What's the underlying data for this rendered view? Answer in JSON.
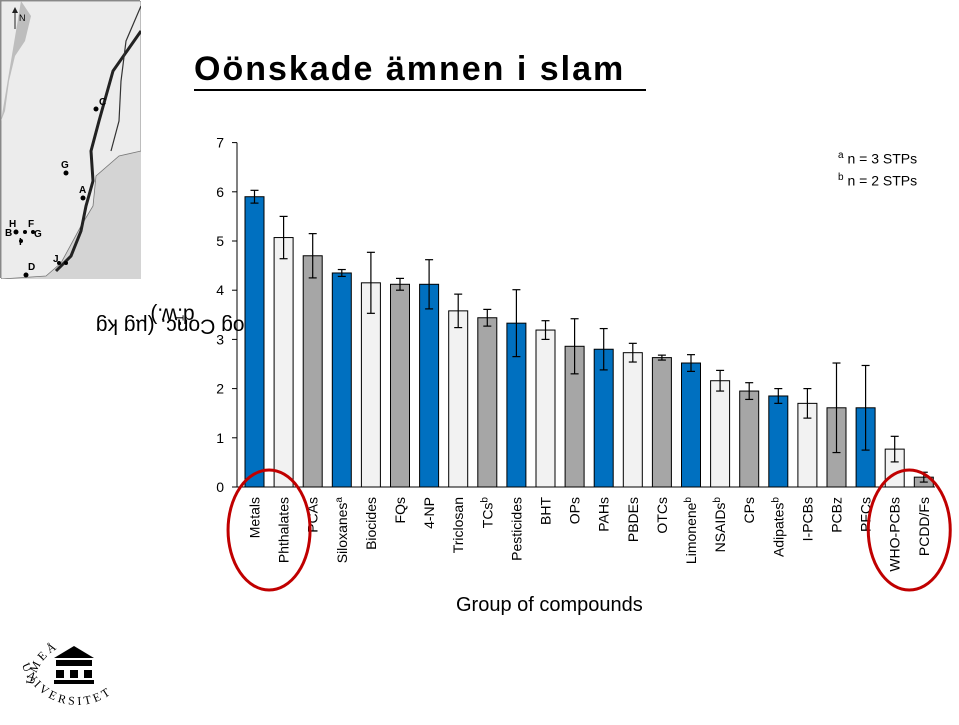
{
  "title": "Oönskade ämnen i slam",
  "ylabel": "log Conc. (µg kg",
  "ylabel_sup": "-1",
  "ylabel_suffix": " d.w.)",
  "xlabel": "Group of compounds",
  "notes": [
    {
      "mark": "a",
      "text": "n = 3 STPs"
    },
    {
      "mark": "b",
      "text": "n = 2 STPs"
    }
  ],
  "map": {
    "north_label": "N",
    "site_labels": [
      "C",
      "G",
      "A",
      "H",
      "F",
      "B",
      "G",
      "I",
      "D",
      "J"
    ]
  },
  "logo": {
    "text_top": "UMEÅ",
    "text_bottom": "UNIVERSITET"
  },
  "colors": {
    "blue": "#0070c0",
    "white": "#f2f2f2",
    "gray": "#a6a6a6",
    "circle": "#c00000"
  },
  "chart_data": {
    "type": "bar",
    "ylim": [
      0,
      7
    ],
    "yticks": [
      0,
      1,
      2,
      3,
      4,
      5,
      6,
      7
    ],
    "grid": false,
    "categories": [
      {
        "label": "Metals",
        "sup": ""
      },
      {
        "label": "Phthalates",
        "sup": ""
      },
      {
        "label": "PCAs",
        "sup": ""
      },
      {
        "label": "Siloxanes",
        "sup": "a"
      },
      {
        "label": "Biocides",
        "sup": ""
      },
      {
        "label": "FQs",
        "sup": ""
      },
      {
        "label": "4-NP",
        "sup": ""
      },
      {
        "label": "Triclosan",
        "sup": ""
      },
      {
        "label": "TCs",
        "sup": "b"
      },
      {
        "label": "Pesticides",
        "sup": ""
      },
      {
        "label": "BHT",
        "sup": ""
      },
      {
        "label": "OPs",
        "sup": ""
      },
      {
        "label": "PAHs",
        "sup": ""
      },
      {
        "label": "PBDEs",
        "sup": ""
      },
      {
        "label": "OTCs",
        "sup": ""
      },
      {
        "label": "Limonene",
        "sup": "b"
      },
      {
        "label": "NSAIDs",
        "sup": "b"
      },
      {
        "label": "CPs",
        "sup": ""
      },
      {
        "label": "Adipates",
        "sup": "b"
      },
      {
        "label": "I-PCBs",
        "sup": ""
      },
      {
        "label": "PCBz",
        "sup": ""
      },
      {
        "label": "PFCs",
        "sup": ""
      },
      {
        "label": "WHO-PCBs",
        "sup": ""
      },
      {
        "label": "PCDD/Fs",
        "sup": ""
      }
    ],
    "values": [
      5.9,
      5.07,
      4.7,
      4.35,
      4.15,
      4.12,
      4.12,
      3.58,
      3.44,
      3.33,
      3.19,
      2.86,
      2.8,
      2.73,
      2.63,
      2.52,
      2.16,
      1.95,
      1.85,
      1.7,
      1.61,
      1.61,
      0.77,
      0.2
    ],
    "errors": [
      0.13,
      0.43,
      0.45,
      0.07,
      0.62,
      0.12,
      0.5,
      0.34,
      0.17,
      0.68,
      0.19,
      0.56,
      0.42,
      0.19,
      0.05,
      0.17,
      0.21,
      0.17,
      0.15,
      0.3,
      0.91,
      0.86,
      0.26,
      0.1
    ],
    "fills": [
      "blue",
      "white",
      "gray",
      "blue",
      "white",
      "gray",
      "blue",
      "white",
      "gray",
      "blue",
      "white",
      "gray",
      "blue",
      "white",
      "gray",
      "blue",
      "white",
      "gray",
      "blue",
      "white",
      "gray",
      "blue",
      "white",
      "gray"
    ],
    "highlighted": [
      "Metals",
      "Phthalates",
      "WHO-PCBs",
      "PCDD/Fs"
    ]
  }
}
